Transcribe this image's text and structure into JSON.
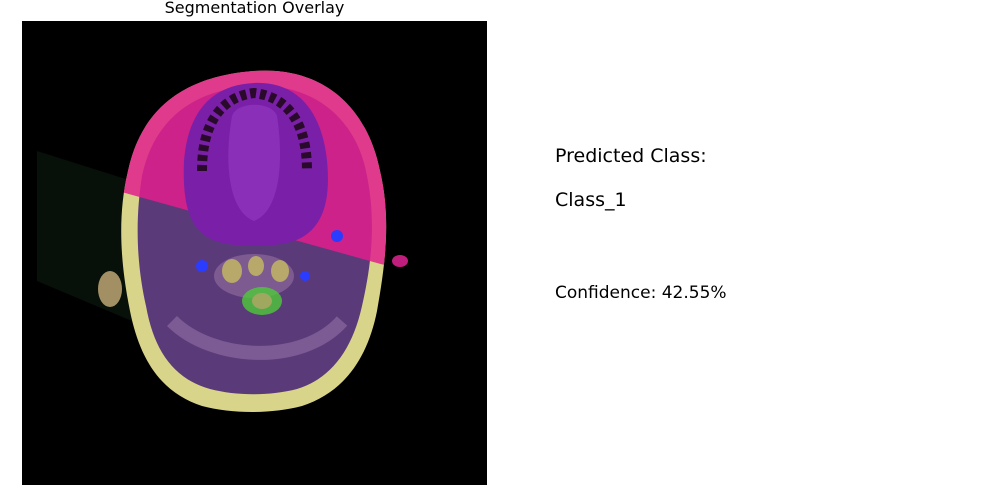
{
  "figure": {
    "title": "Segmentation Overlay"
  },
  "prediction": {
    "heading": "Predicted Class:",
    "class_label": "Class_1",
    "confidence_text": "Confidence: 42.55%"
  },
  "overlay_colors": {
    "background": "#000000",
    "tissue": "#5b3a7a",
    "magenta_region": "#e01e8c",
    "purple_region": "#7a1fa8",
    "yellow_rim": "#d8d48a",
    "green_region": "#4ecb3a",
    "blue_spots": "#2a3cff"
  }
}
